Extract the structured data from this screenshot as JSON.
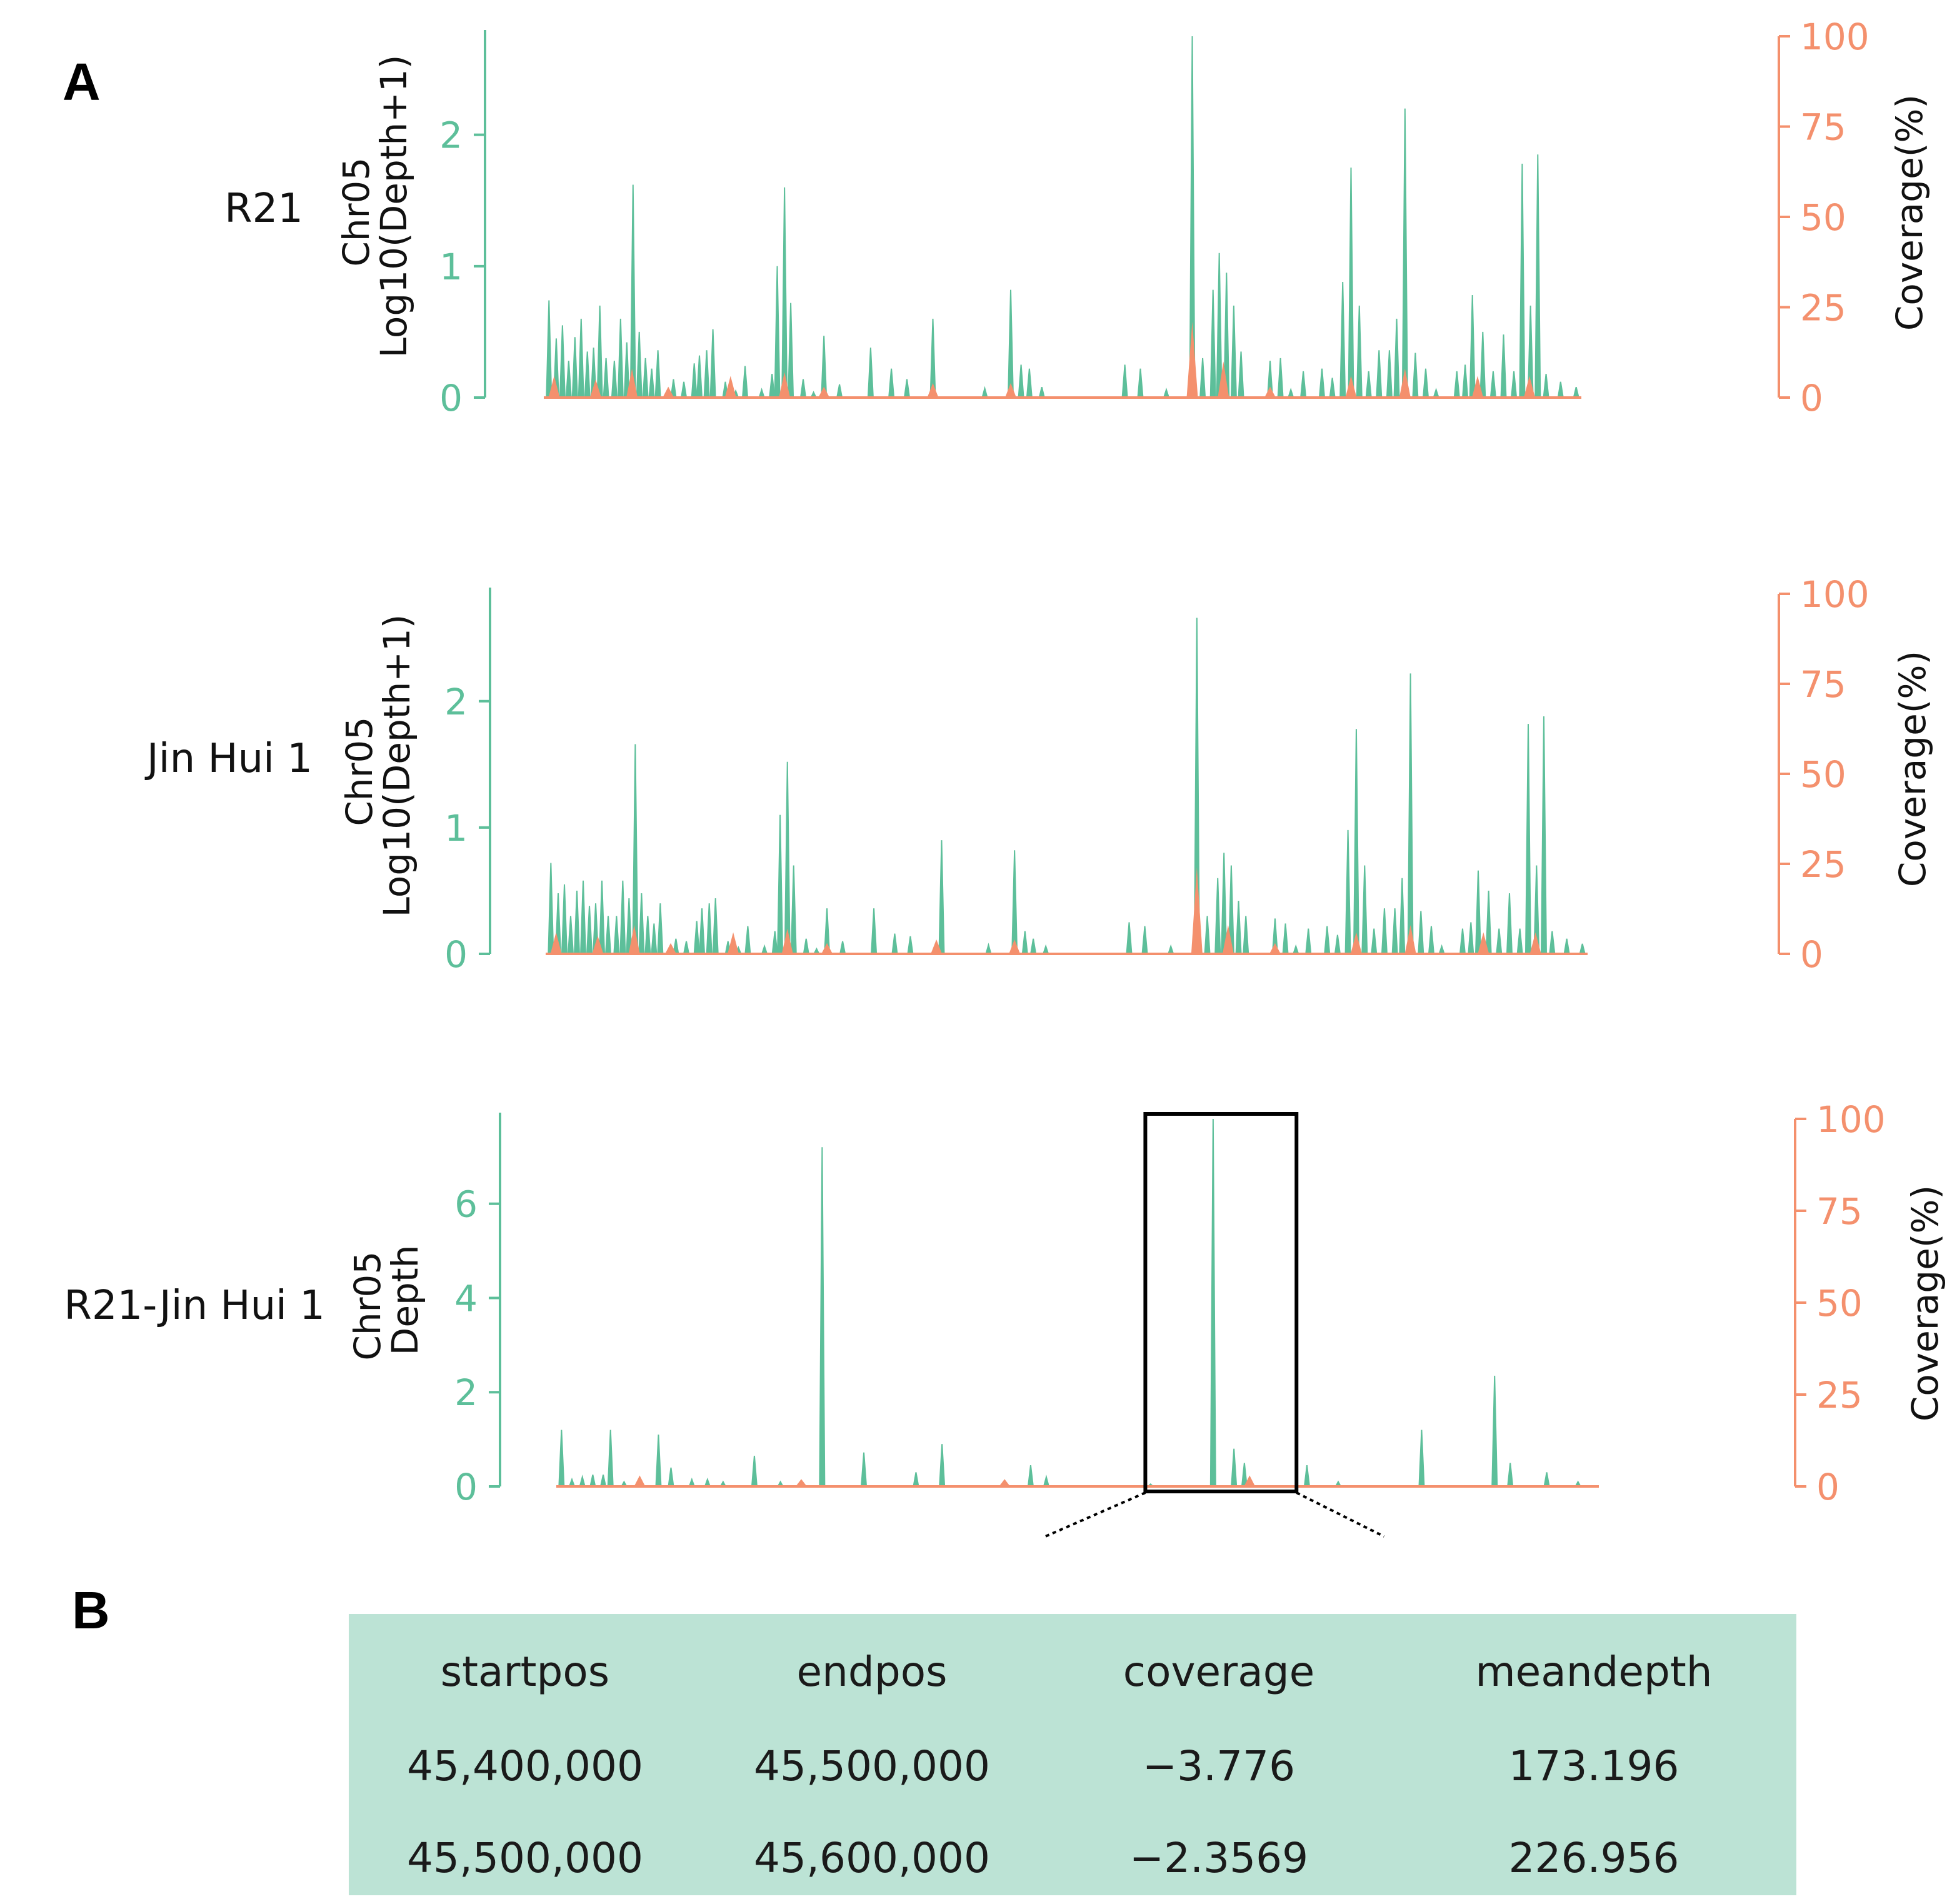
{
  "colors": {
    "depth": "#5dbf9a",
    "coverage": "#f4906d",
    "table_bg": "#bce3d5",
    "text": "#1a1a1a"
  },
  "panel_a_label": "A",
  "panel_b_label": "B",
  "chart_data": [
    {
      "type": "area",
      "row_label": "R21",
      "ylabel_line1": "Chr05",
      "ylabel_line2": "Log10(Depth+1)",
      "y2label": "Coverage(%)",
      "ylim": [
        0,
        2.75
      ],
      "yticks": [
        "0",
        "1",
        "2"
      ],
      "y2lim": [
        0,
        100
      ],
      "y2ticks": [
        "0",
        "25",
        "50",
        "75",
        "100"
      ],
      "xlim": [
        0,
        1
      ],
      "depth_peaks": [
        [
          0.005,
          0.74
        ],
        [
          0.012,
          0.45
        ],
        [
          0.018,
          0.55
        ],
        [
          0.024,
          0.28
        ],
        [
          0.03,
          0.46
        ],
        [
          0.036,
          0.6
        ],
        [
          0.042,
          0.35
        ],
        [
          0.048,
          0.38
        ],
        [
          0.054,
          0.7
        ],
        [
          0.06,
          0.3
        ],
        [
          0.068,
          0.28
        ],
        [
          0.074,
          0.6
        ],
        [
          0.08,
          0.42
        ],
        [
          0.086,
          1.62
        ],
        [
          0.092,
          0.5
        ],
        [
          0.098,
          0.3
        ],
        [
          0.104,
          0.22
        ],
        [
          0.11,
          0.36
        ],
        [
          0.125,
          0.14
        ],
        [
          0.135,
          0.12
        ],
        [
          0.145,
          0.26
        ],
        [
          0.15,
          0.32
        ],
        [
          0.157,
          0.36
        ],
        [
          0.163,
          0.52
        ],
        [
          0.175,
          0.12
        ],
        [
          0.185,
          0.05
        ],
        [
          0.194,
          0.24
        ],
        [
          0.21,
          0.06
        ],
        [
          0.22,
          0.18
        ],
        [
          0.225,
          1.0
        ],
        [
          0.232,
          1.6
        ],
        [
          0.238,
          0.72
        ],
        [
          0.25,
          0.14
        ],
        [
          0.26,
          0.04
        ],
        [
          0.27,
          0.47
        ],
        [
          0.285,
          0.1
        ],
        [
          0.315,
          0.38
        ],
        [
          0.335,
          0.22
        ],
        [
          0.35,
          0.14
        ],
        [
          0.375,
          0.6
        ],
        [
          0.425,
          0.07
        ],
        [
          0.45,
          0.82
        ],
        [
          0.46,
          0.25
        ],
        [
          0.468,
          0.22
        ],
        [
          0.48,
          0.08
        ],
        [
          0.56,
          0.25
        ],
        [
          0.575,
          0.22
        ],
        [
          0.6,
          0.06
        ],
        [
          0.625,
          2.75
        ],
        [
          0.635,
          0.3
        ],
        [
          0.645,
          0.82
        ],
        [
          0.651,
          1.1
        ],
        [
          0.658,
          0.95
        ],
        [
          0.665,
          0.7
        ],
        [
          0.672,
          0.35
        ],
        [
          0.7,
          0.28
        ],
        [
          0.71,
          0.3
        ],
        [
          0.72,
          0.06
        ],
        [
          0.732,
          0.2
        ],
        [
          0.75,
          0.22
        ],
        [
          0.76,
          0.15
        ],
        [
          0.77,
          0.88
        ],
        [
          0.778,
          1.75
        ],
        [
          0.786,
          0.7
        ],
        [
          0.795,
          0.2
        ],
        [
          0.805,
          0.36
        ],
        [
          0.815,
          0.36
        ],
        [
          0.822,
          0.6
        ],
        [
          0.83,
          2.2
        ],
        [
          0.84,
          0.34
        ],
        [
          0.85,
          0.22
        ],
        [
          0.86,
          0.06
        ],
        [
          0.88,
          0.2
        ],
        [
          0.888,
          0.25
        ],
        [
          0.895,
          0.78
        ],
        [
          0.905,
          0.5
        ],
        [
          0.915,
          0.2
        ],
        [
          0.925,
          0.48
        ],
        [
          0.935,
          0.2
        ],
        [
          0.943,
          1.78
        ],
        [
          0.951,
          0.7
        ],
        [
          0.958,
          1.85
        ],
        [
          0.966,
          0.18
        ],
        [
          0.98,
          0.12
        ],
        [
          0.995,
          0.08
        ]
      ],
      "coverage_peaks": [
        [
          0.01,
          6
        ],
        [
          0.05,
          5
        ],
        [
          0.085,
          8
        ],
        [
          0.12,
          3
        ],
        [
          0.18,
          6
        ],
        [
          0.232,
          7
        ],
        [
          0.27,
          3
        ],
        [
          0.375,
          4
        ],
        [
          0.45,
          4
        ],
        [
          0.625,
          21
        ],
        [
          0.655,
          10
        ],
        [
          0.7,
          3
        ],
        [
          0.778,
          6
        ],
        [
          0.83,
          8
        ],
        [
          0.9,
          6
        ],
        [
          0.95,
          6
        ]
      ],
      "highlight_box": null
    },
    {
      "type": "area",
      "row_label": "Jin Hui 1",
      "ylabel_line1": "Chr05",
      "ylabel_line2": "Log10(Depth+1)",
      "y2label": "Coverage(%)",
      "ylim": [
        0,
        2.85
      ],
      "yticks": [
        "0",
        "1",
        "2"
      ],
      "y2lim": [
        0,
        100
      ],
      "y2ticks": [
        "0",
        "25",
        "50",
        "75",
        "100"
      ],
      "xlim": [
        0,
        1
      ],
      "depth_peaks": [
        [
          0.005,
          0.72
        ],
        [
          0.012,
          0.48
        ],
        [
          0.018,
          0.55
        ],
        [
          0.024,
          0.3
        ],
        [
          0.03,
          0.5
        ],
        [
          0.036,
          0.58
        ],
        [
          0.042,
          0.38
        ],
        [
          0.048,
          0.4
        ],
        [
          0.054,
          0.58
        ],
        [
          0.06,
          0.3
        ],
        [
          0.068,
          0.3
        ],
        [
          0.074,
          0.58
        ],
        [
          0.08,
          0.44
        ],
        [
          0.086,
          1.66
        ],
        [
          0.092,
          0.48
        ],
        [
          0.098,
          0.3
        ],
        [
          0.104,
          0.24
        ],
        [
          0.11,
          0.4
        ],
        [
          0.125,
          0.12
        ],
        [
          0.135,
          0.1
        ],
        [
          0.145,
          0.26
        ],
        [
          0.15,
          0.36
        ],
        [
          0.157,
          0.4
        ],
        [
          0.163,
          0.44
        ],
        [
          0.175,
          0.1
        ],
        [
          0.185,
          0.05
        ],
        [
          0.194,
          0.22
        ],
        [
          0.21,
          0.06
        ],
        [
          0.22,
          0.18
        ],
        [
          0.225,
          1.1
        ],
        [
          0.232,
          1.52
        ],
        [
          0.238,
          0.7
        ],
        [
          0.25,
          0.12
        ],
        [
          0.26,
          0.04
        ],
        [
          0.27,
          0.36
        ],
        [
          0.285,
          0.1
        ],
        [
          0.315,
          0.36
        ],
        [
          0.335,
          0.16
        ],
        [
          0.35,
          0.14
        ],
        [
          0.38,
          0.9
        ],
        [
          0.425,
          0.07
        ],
        [
          0.45,
          0.82
        ],
        [
          0.46,
          0.18
        ],
        [
          0.468,
          0.12
        ],
        [
          0.48,
          0.06
        ],
        [
          0.56,
          0.25
        ],
        [
          0.575,
          0.22
        ],
        [
          0.6,
          0.06
        ],
        [
          0.625,
          2.66
        ],
        [
          0.635,
          0.3
        ],
        [
          0.645,
          0.6
        ],
        [
          0.651,
          0.8
        ],
        [
          0.658,
          0.7
        ],
        [
          0.665,
          0.42
        ],
        [
          0.672,
          0.3
        ],
        [
          0.7,
          0.28
        ],
        [
          0.71,
          0.24
        ],
        [
          0.72,
          0.06
        ],
        [
          0.732,
          0.2
        ],
        [
          0.75,
          0.22
        ],
        [
          0.76,
          0.15
        ],
        [
          0.77,
          0.98
        ],
        [
          0.778,
          1.78
        ],
        [
          0.786,
          0.7
        ],
        [
          0.795,
          0.2
        ],
        [
          0.805,
          0.36
        ],
        [
          0.815,
          0.36
        ],
        [
          0.822,
          0.6
        ],
        [
          0.83,
          2.22
        ],
        [
          0.84,
          0.34
        ],
        [
          0.85,
          0.22
        ],
        [
          0.86,
          0.06
        ],
        [
          0.88,
          0.2
        ],
        [
          0.888,
          0.25
        ],
        [
          0.895,
          0.66
        ],
        [
          0.905,
          0.5
        ],
        [
          0.915,
          0.2
        ],
        [
          0.925,
          0.48
        ],
        [
          0.935,
          0.2
        ],
        [
          0.943,
          1.82
        ],
        [
          0.951,
          0.7
        ],
        [
          0.958,
          1.88
        ],
        [
          0.966,
          0.18
        ],
        [
          0.98,
          0.12
        ],
        [
          0.995,
          0.08
        ]
      ],
      "coverage_peaks": [
        [
          0.01,
          6
        ],
        [
          0.05,
          5
        ],
        [
          0.085,
          8
        ],
        [
          0.12,
          3
        ],
        [
          0.18,
          6
        ],
        [
          0.232,
          7
        ],
        [
          0.27,
          3
        ],
        [
          0.375,
          4
        ],
        [
          0.45,
          4
        ],
        [
          0.625,
          24
        ],
        [
          0.655,
          8
        ],
        [
          0.7,
          3
        ],
        [
          0.778,
          6
        ],
        [
          0.83,
          8
        ],
        [
          0.9,
          6
        ],
        [
          0.95,
          6
        ]
      ],
      "highlight_box": null
    },
    {
      "type": "area",
      "row_label": "R21-Jin Hui  1",
      "ylabel_line1": "Chr05",
      "ylabel_line2": "Depth",
      "y2label": "Coverage(%)",
      "ylim": [
        0,
        7.8
      ],
      "yticks": [
        "0",
        "2",
        "4",
        "6"
      ],
      "y2lim": [
        0,
        100
      ],
      "y2ticks": [
        "0",
        "25",
        "50",
        "75",
        "100"
      ],
      "xlim": [
        0,
        1
      ],
      "depth_peaks": [
        [
          0.005,
          1.2
        ],
        [
          0.015,
          0.15
        ],
        [
          0.025,
          0.2
        ],
        [
          0.035,
          0.25
        ],
        [
          0.045,
          0.25
        ],
        [
          0.052,
          1.2
        ],
        [
          0.065,
          0.1
        ],
        [
          0.098,
          1.1
        ],
        [
          0.11,
          0.4
        ],
        [
          0.13,
          0.15
        ],
        [
          0.145,
          0.15
        ],
        [
          0.16,
          0.1
        ],
        [
          0.19,
          0.65
        ],
        [
          0.215,
          0.1
        ],
        [
          0.235,
          0.1
        ],
        [
          0.255,
          7.2
        ],
        [
          0.295,
          0.72
        ],
        [
          0.345,
          0.3
        ],
        [
          0.37,
          0.9
        ],
        [
          0.455,
          0.45
        ],
        [
          0.47,
          0.2
        ],
        [
          0.57,
          0.05
        ],
        [
          0.63,
          7.8
        ],
        [
          0.65,
          0.8
        ],
        [
          0.66,
          0.5
        ],
        [
          0.72,
          0.45
        ],
        [
          0.75,
          0.1
        ],
        [
          0.83,
          1.2
        ],
        [
          0.9,
          2.35
        ],
        [
          0.915,
          0.5
        ],
        [
          0.95,
          0.3
        ],
        [
          0.98,
          0.1
        ]
      ],
      "coverage_peaks": [
        [
          0.08,
          3
        ],
        [
          0.235,
          2
        ],
        [
          0.43,
          2
        ],
        [
          0.665,
          3
        ]
      ],
      "highlight_box": [
        0.565,
        0.71
      ]
    }
  ],
  "table": {
    "headers": [
      "startpos",
      "endpos",
      "coverage",
      "meandepth"
    ],
    "rows": [
      [
        "45,400,000",
        "45,500,000",
        "−3.776",
        "173.196"
      ],
      [
        "45,500,000",
        "45,600,000",
        "−2.3569",
        "226.956"
      ]
    ]
  }
}
